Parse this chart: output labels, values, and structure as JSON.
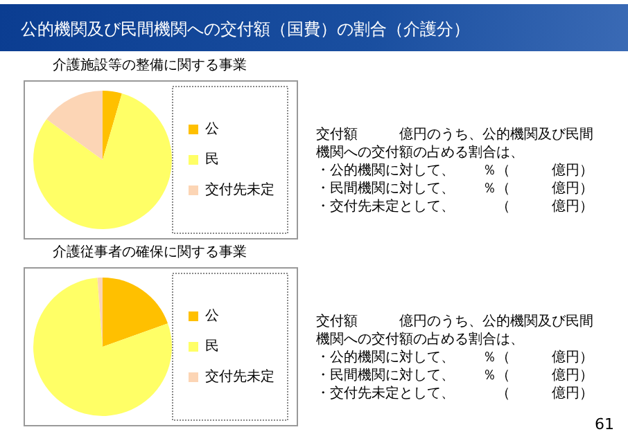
{
  "chart_data": [
    {
      "type": "pie",
      "title": "公的機関及び民間機関への交付額（国費）の割合（介護分）",
      "subtitle": "介護施設等の整備に関する事業",
      "categories": [
        "公",
        "民",
        "交付先未定"
      ],
      "values": [
        4.5,
        80.5,
        15
      ],
      "colors": [
        "#ffc000",
        "#ffff66",
        "#fcd5b5"
      ],
      "legend": "right",
      "annotations": [
        "交付額　　　億円のうち、公的機関及び民間",
        "機関への交付額の占める割合は、",
        "・公的機関に対して、　　％（　　　億円）",
        "・民間機関に対して、　　％（　　　億円）",
        "・交付先未定として、　　　（　　　億円）"
      ]
    },
    {
      "type": "pie",
      "title": "介護従事者の確保に関する事業",
      "categories": [
        "公",
        "民",
        "交付先未定"
      ],
      "values": [
        19.5,
        79.3,
        1.2
      ],
      "colors": [
        "#ffc000",
        "#ffff66",
        "#fcd5b5"
      ],
      "legend": "right",
      "annotations": [
        "交付額　　　億円のうち、公的機関及び民間",
        "機関への交付額の占める割合は、",
        "・公的機関に対して、　　％（　　　億円）",
        "・民間機関に対して、　　％（　　　億円）",
        "・交付先未定として、　　　（　　　億円）",
        "61"
      ]
    }
  ]
}
